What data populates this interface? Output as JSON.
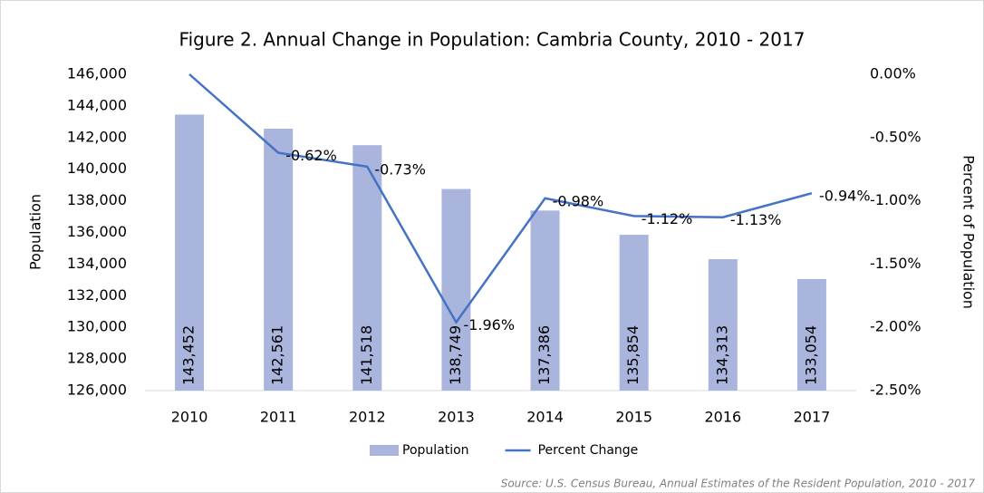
{
  "chart_data": {
    "type": "bar+line",
    "title": "Figure 2. Annual Change in Population: Cambria County, 2010 - 2017",
    "y_label": "Population",
    "y2_label": "Percent of Population",
    "source": "Source: U.S. Census Bureau, Annual Estimates of the Resident Population, 2010 - 2017",
    "categories": [
      "2010",
      "2011",
      "2012",
      "2013",
      "2014",
      "2015",
      "2016",
      "2017"
    ],
    "series": [
      {
        "name": "Population",
        "type": "bar",
        "color": "#a9b5dc",
        "values": [
          143452,
          142561,
          141518,
          138749,
          137386,
          135854,
          134313,
          133054
        ],
        "value_labels": [
          "143,452",
          "142,561",
          "141,518",
          "138,749",
          "137,386",
          "135,854",
          "134,313",
          "133,054"
        ]
      },
      {
        "name": "Percent Change",
        "type": "line",
        "axis": "y2",
        "color": "#4472c4",
        "values": [
          0,
          -0.62,
          -0.73,
          -1.96,
          -0.98,
          -1.12,
          -1.13,
          -0.94
        ],
        "value_labels": [
          null,
          "-0.62%",
          "-0.73%",
          "-1.96%",
          "-0.98%",
          "-1.12%",
          "-1.13%",
          "-0.94%"
        ]
      }
    ],
    "ylim": [
      126000,
      146000
    ],
    "yticks": [
      {
        "value": 126000,
        "label": "126,000"
      },
      {
        "value": 128000,
        "label": "128,000"
      },
      {
        "value": 130000,
        "label": "130,000"
      },
      {
        "value": 132000,
        "label": "132,000"
      },
      {
        "value": 134000,
        "label": "134,000"
      },
      {
        "value": 136000,
        "label": "136,000"
      },
      {
        "value": 138000,
        "label": "138,000"
      },
      {
        "value": 140000,
        "label": "140,000"
      },
      {
        "value": 142000,
        "label": "142,000"
      },
      {
        "value": 144000,
        "label": "144,000"
      },
      {
        "value": 146000,
        "label": "146,000"
      }
    ],
    "y2lim": [
      -2.5,
      0
    ],
    "y2ticks": [
      {
        "value": -2.5,
        "label": "-2.50%"
      },
      {
        "value": -2,
        "label": "-2.00%"
      },
      {
        "value": -1.5,
        "label": "-1.50%"
      },
      {
        "value": -1,
        "label": "-1.00%"
      },
      {
        "value": -0.5,
        "label": "-0.50%"
      },
      {
        "value": 0,
        "label": "0.00%"
      }
    ],
    "grid": false,
    "legend": "bottom"
  }
}
